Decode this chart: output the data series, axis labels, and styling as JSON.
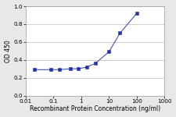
{
  "x": [
    0.02,
    0.08,
    0.16,
    0.4,
    0.8,
    1.6,
    3.2,
    10,
    25,
    100
  ],
  "y": [
    0.29,
    0.29,
    0.29,
    0.3,
    0.3,
    0.32,
    0.36,
    0.49,
    0.7,
    0.92
  ],
  "line_color": "#4455aa",
  "marker": "s",
  "marker_size": 2.2,
  "marker_color": "#2233aa",
  "linewidth": 0.8,
  "xlabel": "Recombinant Protein Concentration (ng/ml)",
  "ylabel": "OD 450",
  "xlim": [
    0.01,
    1000
  ],
  "ylim": [
    0.0,
    1.0
  ],
  "yticks": [
    0.0,
    0.2,
    0.4,
    0.6,
    0.8,
    1.0
  ],
  "xticks": [
    0.01,
    0.1,
    1,
    10,
    100,
    1000
  ],
  "xtick_labels": [
    "0.01",
    "0.1",
    "1",
    "10",
    "100",
    "1000"
  ],
  "grid_color": "#bbbbbb",
  "background_color": "#e8e8e8",
  "plot_bg_color": "#ffffff",
  "label_fontsize": 5.5,
  "tick_fontsize": 5.2
}
